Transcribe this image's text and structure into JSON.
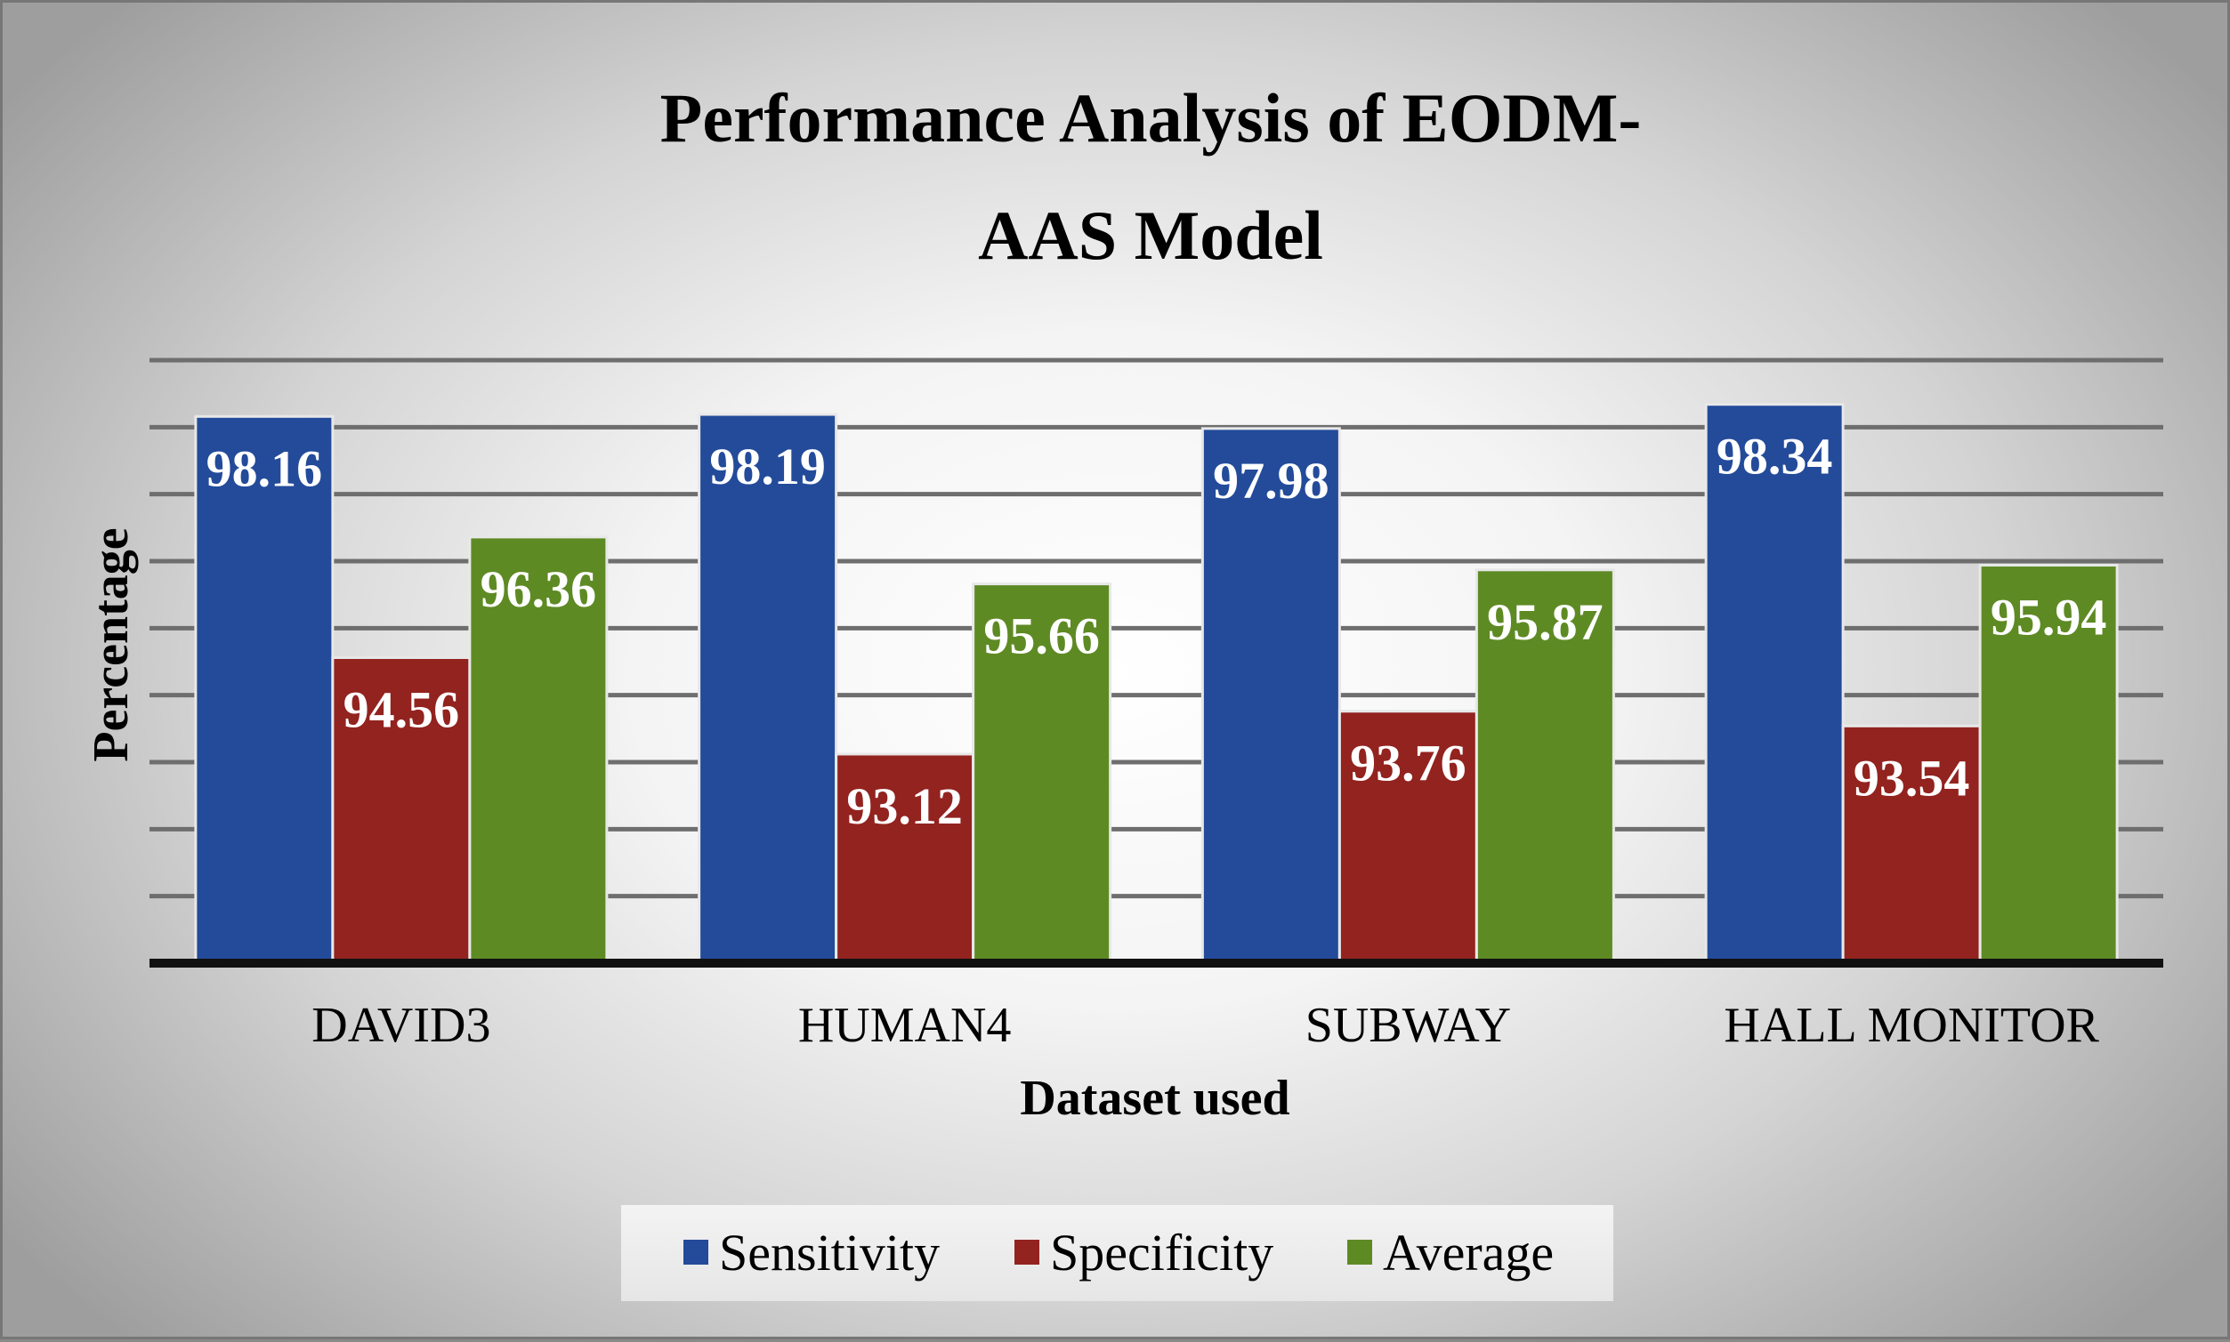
{
  "chart_data": {
    "type": "bar",
    "title_lines": [
      "Performance Analysis of EODM-",
      "AAS Model"
    ],
    "xlabel": "Dataset used",
    "ylabel": "Percentage",
    "categories": [
      "DAVID3",
      "HUMAN4",
      "SUBWAY",
      "HALL MONITOR"
    ],
    "series": [
      {
        "name": "Sensitivity",
        "color": "#234B9A",
        "values": [
          98.16,
          98.19,
          97.98,
          98.34
        ]
      },
      {
        "name": "Specificity",
        "color": "#92231F",
        "values": [
          94.56,
          93.12,
          93.76,
          93.54
        ]
      },
      {
        "name": "Average",
        "color": "#5E8A24",
        "values": [
          96.36,
          95.66,
          95.87,
          95.94
        ]
      }
    ],
    "ylim": [
      90,
      99
    ],
    "gridlines": true,
    "legend_position": "bottom"
  }
}
